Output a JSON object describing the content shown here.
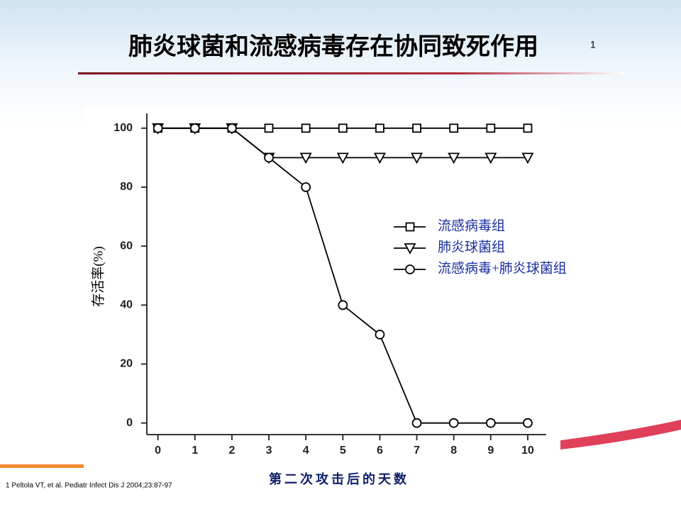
{
  "slide": {
    "title": "肺炎球菌和流感病毒存在协同致死作用",
    "title_note": "1",
    "footnote": "1 Peltola VT, et al. Pediatr Infect Dis J 2004;23:87-97"
  },
  "chart_data": {
    "type": "line",
    "x_label": "第二次攻击后的天数",
    "y_label": "存活率(%)",
    "x": [
      0,
      1,
      2,
      3,
      4,
      5,
      6,
      7,
      8,
      9,
      10
    ],
    "series": [
      {
        "name": "流感病毒组",
        "color": "#000000",
        "marker": "square",
        "values": [
          100,
          100,
          100,
          100,
          100,
          100,
          100,
          100,
          100,
          100,
          100
        ]
      },
      {
        "name": "肺炎球菌组",
        "color": "#000000",
        "marker": "triangle",
        "values": [
          100,
          100,
          100,
          90,
          90,
          90,
          90,
          90,
          90,
          90,
          90
        ]
      },
      {
        "name": "流感病毒+肺炎球菌组",
        "color": "#000000",
        "marker": "circle",
        "values": [
          100,
          100,
          100,
          90,
          80,
          40,
          30,
          0,
          0,
          0,
          0
        ]
      }
    ],
    "xlim": [
      -0.3,
      10.5
    ],
    "xticks": [
      0,
      1,
      2,
      3,
      4,
      5,
      6,
      7,
      8,
      9,
      10
    ],
    "ylim": [
      -2,
      105
    ],
    "yticks": [
      0,
      20,
      40,
      60,
      80,
      100
    ],
    "grid": false,
    "legend": "right"
  }
}
